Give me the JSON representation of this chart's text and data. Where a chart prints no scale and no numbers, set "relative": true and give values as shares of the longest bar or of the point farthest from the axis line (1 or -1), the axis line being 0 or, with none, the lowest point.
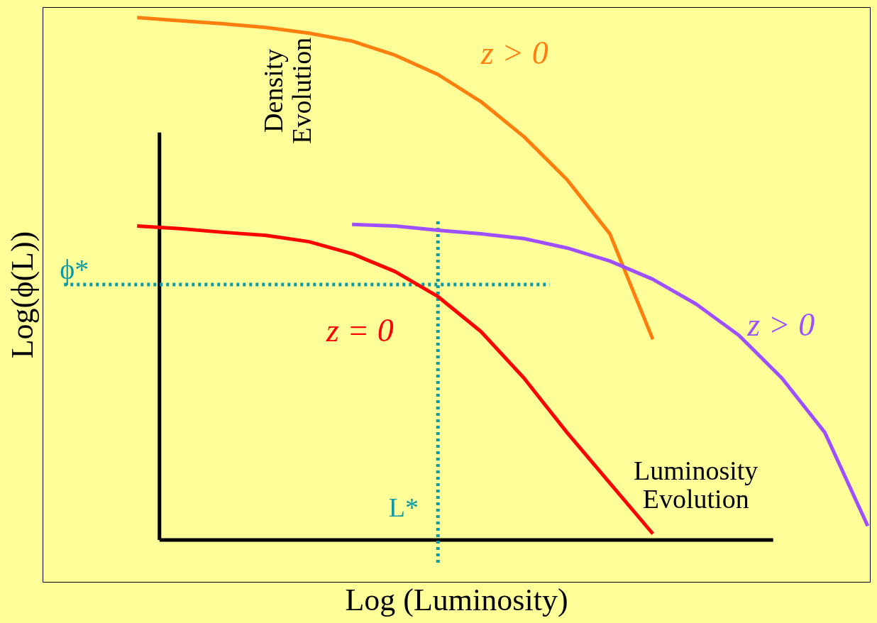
{
  "chart_data": {
    "type": "line",
    "relative": true,
    "xlabel": "Log (Luminosity)",
    "ylabel": "Log(ϕ(L))",
    "tick_labels": false,
    "grid": false,
    "line_style": "solid",
    "marker": "none",
    "categories": [
      null,
      null,
      null,
      null,
      null,
      null,
      null,
      null,
      null,
      null,
      null,
      null,
      null,
      null,
      null,
      null,
      null,
      null
    ],
    "series": [
      {
        "name": "z > 0",
        "color": "#ff7f0e",
        "values": [
          1.0,
          0.994,
          0.988,
          0.981,
          0.97,
          0.955,
          0.928,
          0.891,
          0.839,
          0.772,
          0.69,
          0.586,
          0.384,
          null,
          null,
          null,
          null,
          null
        ]
      },
      {
        "name": "z = 0",
        "color": "#ff0000",
        "values": [
          0.601,
          0.596,
          0.589,
          0.583,
          0.571,
          0.548,
          0.514,
          0.466,
          0.399,
          0.31,
          0.206,
          0.109,
          0.012,
          null,
          null,
          null,
          null,
          null
        ]
      },
      {
        "name": "z > 0",
        "color": "#9f4fff",
        "values": [
          null,
          null,
          null,
          null,
          null,
          0.604,
          0.601,
          0.593,
          0.586,
          0.577,
          0.559,
          0.534,
          0.499,
          0.452,
          0.392,
          0.31,
          0.206,
          0.027
        ]
      }
    ],
    "ref_lines": [
      {
        "axis": "y",
        "value": 0.489,
        "label": "ϕ*",
        "color": "#0e9aa7",
        "line_style": "dotted"
      }
    ],
    "annotations": [
      "Density Evolution",
      "Luminosity Evolution",
      "L*"
    ]
  }
}
